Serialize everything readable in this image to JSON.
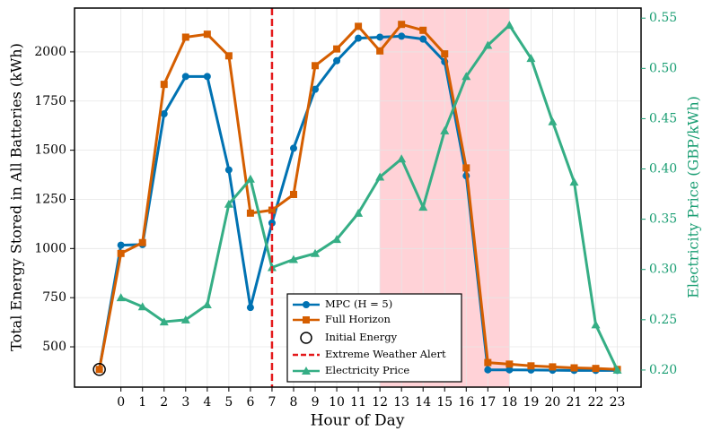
{
  "chart_data": {
    "type": "line",
    "xlabel": "Hour of Day",
    "ylabel": "Total Energy Stored in All Batteries (kWh)",
    "y2label": "Electricity Price (GBP/kWh)",
    "x": [
      -1,
      0,
      1,
      2,
      3,
      4,
      5,
      6,
      7,
      8,
      9,
      10,
      11,
      12,
      13,
      14,
      15,
      16,
      17,
      18,
      19,
      20,
      21,
      22,
      23
    ],
    "xlim": [
      -2.15,
      24.1
    ],
    "xticks": [
      0,
      1,
      2,
      3,
      4,
      5,
      6,
      7,
      8,
      9,
      10,
      11,
      12,
      13,
      14,
      15,
      16,
      17,
      18,
      19,
      20,
      21,
      22,
      23
    ],
    "ylim": [
      295,
      2223
    ],
    "yticks": [
      500,
      750,
      1000,
      1250,
      1500,
      1750,
      2000
    ],
    "y2lim": [
      0.183,
      0.56
    ],
    "y2ticks": [
      {
        "value": 0.2,
        "label": "0.20"
      },
      0.25,
      {
        "value": 0.3,
        "label": "0.30"
      },
      0.35,
      {
        "value": 0.4,
        "label": "0.40"
      },
      0.45,
      {
        "value": 0.5,
        "label": "0.50"
      },
      0.55
    ],
    "grid": true,
    "legend": "lower center",
    "series": [
      {
        "name": "MPC (H = 5)",
        "color": "#0072b2",
        "marker": "circle",
        "values": [
          385,
          1017,
          1020,
          1685,
          1875,
          1875,
          1400,
          700,
          1130,
          1510,
          1810,
          1955,
          2070,
          2075,
          2080,
          2065,
          1950,
          1370,
          383,
          383,
          382,
          381,
          380,
          380,
          380
        ]
      },
      {
        "name": "Full Horizon",
        "color": "#d55e00",
        "marker": "square",
        "values": [
          385,
          975,
          1030,
          1835,
          2075,
          2090,
          1980,
          1180,
          1195,
          1275,
          1930,
          2015,
          2130,
          2005,
          2140,
          2110,
          1990,
          1410,
          420,
          412,
          403,
          398,
          393,
          390,
          385
        ]
      },
      {
        "name": "Electricity Price",
        "color": "#35ae85",
        "marker": "triangle",
        "axis": "y2",
        "values": [
          null,
          0.272,
          0.263,
          0.248,
          0.25,
          0.265,
          0.365,
          0.39,
          0.302,
          0.31,
          0.316,
          0.33,
          0.356,
          0.392,
          0.41,
          0.362,
          0.438,
          0.492,
          0.523,
          0.543,
          0.51,
          0.447,
          0.387,
          0.245,
          0.2
        ]
      }
    ],
    "initial_energy": {
      "name": "Initial Energy",
      "x": -1,
      "value": 385
    },
    "alert": {
      "name": "Extreme Weather Alert",
      "x": 7,
      "color": "#e41a1c"
    },
    "shaded_region": {
      "x": [
        12,
        18
      ],
      "color": "#ffd2d7"
    }
  }
}
